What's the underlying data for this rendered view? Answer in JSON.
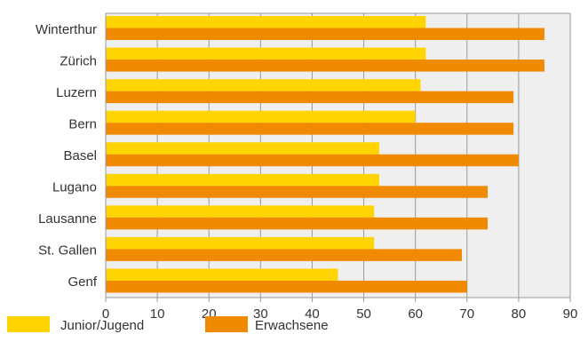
{
  "chart_data": {
    "type": "bar",
    "orientation": "horizontal",
    "categories": [
      "Winterthur",
      "Zürich",
      "Luzern",
      "Bern",
      "Basel",
      "Lugano",
      "Lausanne",
      "St. Gallen",
      "Genf"
    ],
    "series": [
      {
        "name": "Junior/Jugend",
        "color": "#FFD400",
        "values": [
          62,
          62,
          61,
          60,
          53,
          53,
          52,
          52,
          45
        ]
      },
      {
        "name": "Erwachsene",
        "color": "#F08A00",
        "values": [
          85,
          85,
          79,
          79,
          80,
          74,
          74,
          69,
          70
        ]
      }
    ],
    "xlim": [
      0,
      90
    ],
    "xticks": [
      0,
      10,
      20,
      30,
      40,
      50,
      60,
      70,
      80,
      90
    ],
    "grid": true,
    "legend": "bottom-left",
    "title": "",
    "xlabel": "",
    "ylabel": "",
    "colors": {
      "plot_background": "#EFEFEF",
      "grid": "#9A9A9A",
      "text": "#333333"
    }
  }
}
